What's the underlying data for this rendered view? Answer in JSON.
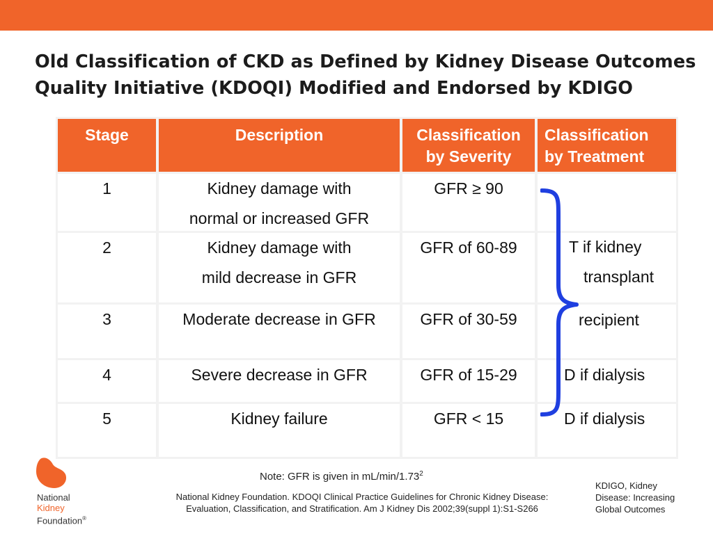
{
  "slide": {
    "title_line1": "Old Classification of CKD as Defined by Kidney Disease Outcomes",
    "title_line2": "Quality Initiative (KDOQI) Modified and Endorsed by KDIGO"
  },
  "table": {
    "headers": {
      "stage": "Stage",
      "description": "Description",
      "severity_line1": "Classification",
      "severity_line2": "by Severity",
      "treatment_line1": "Classification",
      "treatment_line2": "by Treatment"
    },
    "rows": [
      {
        "stage": "1",
        "description_line1": "Kidney damage with",
        "description_line2": "normal or increased GFR",
        "severity": "GFR ≥ 90"
      },
      {
        "stage": "2",
        "description_line1": "Kidney damage with",
        "description_line2": "mild decrease  in GFR",
        "severity": "GFR of 60-89"
      },
      {
        "stage": "3",
        "description_line1": "Moderate decrease in GFR",
        "description_line2": "",
        "severity": "GFR of 30-59"
      },
      {
        "stage": "4",
        "description_line1": "Severe decrease  in GFR",
        "description_line2": "",
        "severity": "GFR of 15-29"
      },
      {
        "stage": "5",
        "description_line1": "Kidney failure",
        "description_line2": "",
        "severity": "GFR < 15"
      }
    ],
    "treatment": {
      "transplant_line1": "T if kidney",
      "transplant_line2": "transplant",
      "transplant_line3": "recipient",
      "dialysis_row4": "D if dialysis",
      "dialysis_row5": "D if dialysis"
    }
  },
  "note": {
    "text": "Note:  GFR is given in mL/min/1.73",
    "superscript": "2"
  },
  "citation": {
    "line1": "National Kidney Foundation. KDOQI Clinical Practice Guidelines for Chronic Kidney Disease:",
    "line2": "Evaluation, Classification, and Stratification. Am J Kidney Dis 2002;39(suppl 1):S1-S266"
  },
  "kdigo_note": {
    "line1": "KDIGO, Kidney",
    "line2": "Disease: Increasing",
    "line3": "Global Outcomes"
  },
  "logo": {
    "line1": "National",
    "line2": "Kidney",
    "line3": "Foundation",
    "mark": "®"
  },
  "colors": {
    "brand_orange": "#f0642a",
    "brace_blue": "#1f3fe0",
    "grid_gray": "#f2f2f2"
  },
  "icons": {
    "brace": "right-curly-brace",
    "logo": "kidney-bean-logo"
  }
}
